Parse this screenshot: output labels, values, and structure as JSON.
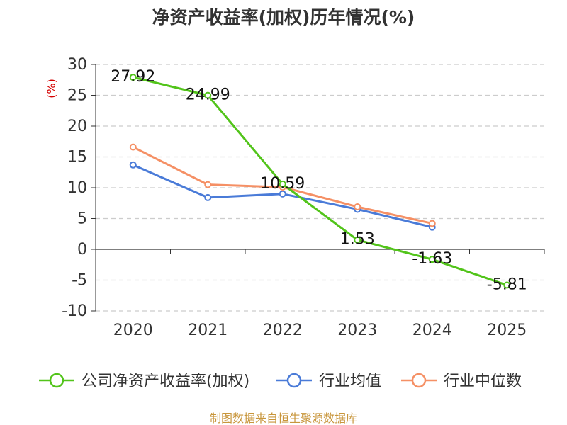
{
  "title": "净资产收益率(加权)历年情况(%)",
  "source": "制图数据来自恒生聚源数据库",
  "colors": {
    "series_company": "#52c41a",
    "series_avg": "#4a7bd8",
    "series_median": "#f59065",
    "grid": "#cccccc",
    "axis": "#333333",
    "unit": "#d40000",
    "source": "#c8963c"
  },
  "chart_data": {
    "type": "line",
    "title": "净资产收益率(加权)历年情况(%)",
    "ylabel": "(%)",
    "xlabel": "",
    "ylim": [
      -10,
      30
    ],
    "yticks": [
      30,
      25,
      20,
      15,
      10,
      5,
      0,
      -5,
      -10
    ],
    "x": [
      "2020",
      "2021",
      "2022",
      "2023",
      "2024",
      "2025"
    ],
    "grid": true,
    "legend_position": "bottom",
    "series": [
      {
        "name": "公司净资产收益率(加权)",
        "color": "#52c41a",
        "values": [
          27.92,
          24.99,
          10.59,
          1.53,
          -1.63,
          -5.81
        ],
        "labels": [
          "27.92",
          "24.99",
          "10.59",
          "1.53",
          "-1.63",
          "-5.81"
        ]
      },
      {
        "name": "行业均值",
        "color": "#4a7bd8",
        "values": [
          13.7,
          8.4,
          9.0,
          6.5,
          3.6,
          null
        ]
      },
      {
        "name": "行业中位数",
        "color": "#f59065",
        "values": [
          16.6,
          10.5,
          10.1,
          6.9,
          4.2,
          null
        ]
      }
    ]
  }
}
